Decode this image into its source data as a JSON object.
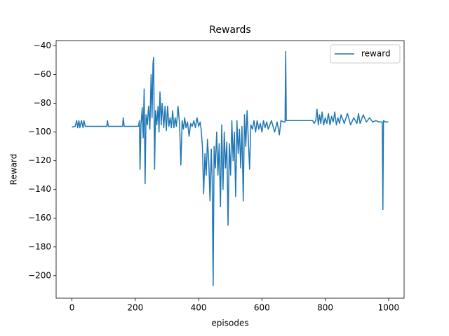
{
  "chart_data": {
    "type": "line",
    "title": "Rewards",
    "x_label": "episodes",
    "y_label": "Reward",
    "legend": "upper right",
    "xlim": [
      -50,
      1049
    ],
    "ylim": [
      -215.7,
      -36.3
    ],
    "xticks": [
      0,
      200,
      400,
      600,
      800,
      1000
    ],
    "yticks": [
      {
        "value": -40,
        "label": "−40"
      },
      {
        "value": -60,
        "label": "−60"
      },
      {
        "value": -80,
        "label": "−80"
      },
      {
        "value": -100,
        "label": "−100"
      },
      {
        "value": -120,
        "label": "−120"
      },
      {
        "value": -140,
        "label": "−140"
      },
      {
        "value": -160,
        "label": "−160"
      },
      {
        "value": -180,
        "label": "−180"
      },
      {
        "value": -200,
        "label": "−200"
      }
    ],
    "series": [
      {
        "name": "reward",
        "color": "#1f77b4",
        "x": [
          0,
          10,
          15,
          18,
          22,
          25,
          30,
          35,
          38,
          42,
          110,
          112,
          115,
          160,
          162,
          165,
          210,
          213,
          215,
          218,
          222,
          225,
          228,
          231,
          234,
          238,
          242,
          246,
          250,
          253,
          256,
          258,
          261,
          264,
          268,
          272,
          275,
          278,
          282,
          285,
          290,
          294,
          298,
          302,
          306,
          310,
          314,
          318,
          322,
          326,
          330,
          335,
          340,
          344,
          348,
          352,
          356,
          360,
          365,
          370,
          375,
          380,
          385,
          390,
          395,
          400,
          405,
          408,
          412,
          416,
          420,
          424,
          428,
          432,
          436,
          440,
          443,
          446,
          449,
          453,
          457,
          461,
          465,
          469,
          473,
          477,
          481,
          485,
          489,
          493,
          497,
          501,
          505,
          509,
          513,
          517,
          521,
          525,
          529,
          533,
          537,
          541,
          545,
          549,
          553,
          557,
          561,
          565,
          570,
          575,
          580,
          585,
          590,
          595,
          600,
          605,
          610,
          615,
          620,
          630,
          640,
          648,
          655,
          660,
          668,
          673,
          675,
          677,
          700,
          740,
          760,
          765,
          770,
          774,
          778,
          782,
          786,
          790,
          795,
          800,
          805,
          810,
          815,
          820,
          825,
          830,
          835,
          840,
          845,
          850,
          860,
          870,
          880,
          890,
          900,
          905,
          910,
          920,
          930,
          940,
          950,
          960,
          970,
          980,
          982,
          984,
          990,
          999
        ],
        "values": [
          -96.5,
          -96,
          -92,
          -97,
          -92,
          -97,
          -92,
          -97,
          -92,
          -96,
          -96,
          -92,
          -96,
          -96,
          -90,
          -96,
          -96,
          -92,
          -126,
          -95,
          -83,
          -104,
          -70,
          -136,
          -88,
          -95,
          -82,
          -98,
          -60,
          -90,
          -52,
          -48,
          -126,
          -85,
          -95,
          -82,
          -100,
          -72,
          -95,
          -80,
          -97,
          -82,
          -99,
          -82,
          -96,
          -90,
          -97,
          -85,
          -97,
          -90,
          -96,
          -82,
          -95,
          -123,
          -92,
          -98,
          -90,
          -97,
          -93,
          -103,
          -94,
          -96,
          -92,
          -97,
          -90,
          -96,
          -93,
          -98,
          -110,
          -143,
          -115,
          -130,
          -105,
          -120,
          -148,
          -112,
          -135,
          -207,
          -110,
          -125,
          -100,
          -130,
          -108,
          -152,
          -95,
          -140,
          -100,
          -125,
          -107,
          -165,
          -108,
          -130,
          -92,
          -120,
          -100,
          -145,
          -92,
          -115,
          -98,
          -125,
          -96,
          -148,
          -88,
          -110,
          -85,
          -105,
          -126,
          -95,
          -98,
          -92,
          -100,
          -92,
          -98,
          -94,
          -100,
          -92,
          -97,
          -93,
          -98,
          -92,
          -100,
          -93,
          -102,
          -92,
          -93,
          -93,
          -44,
          -92,
          -92,
          -92,
          -92,
          -94,
          -92,
          -84,
          -95,
          -88,
          -94,
          -86,
          -95,
          -90,
          -94,
          -87,
          -95,
          -89,
          -93,
          -86,
          -95,
          -90,
          -94,
          -88,
          -94,
          -87,
          -95,
          -90,
          -94,
          -87,
          -94,
          -88,
          -93,
          -90,
          -93,
          -92,
          -93,
          -93,
          -154,
          -92,
          -93,
          -93
        ]
      }
    ]
  }
}
